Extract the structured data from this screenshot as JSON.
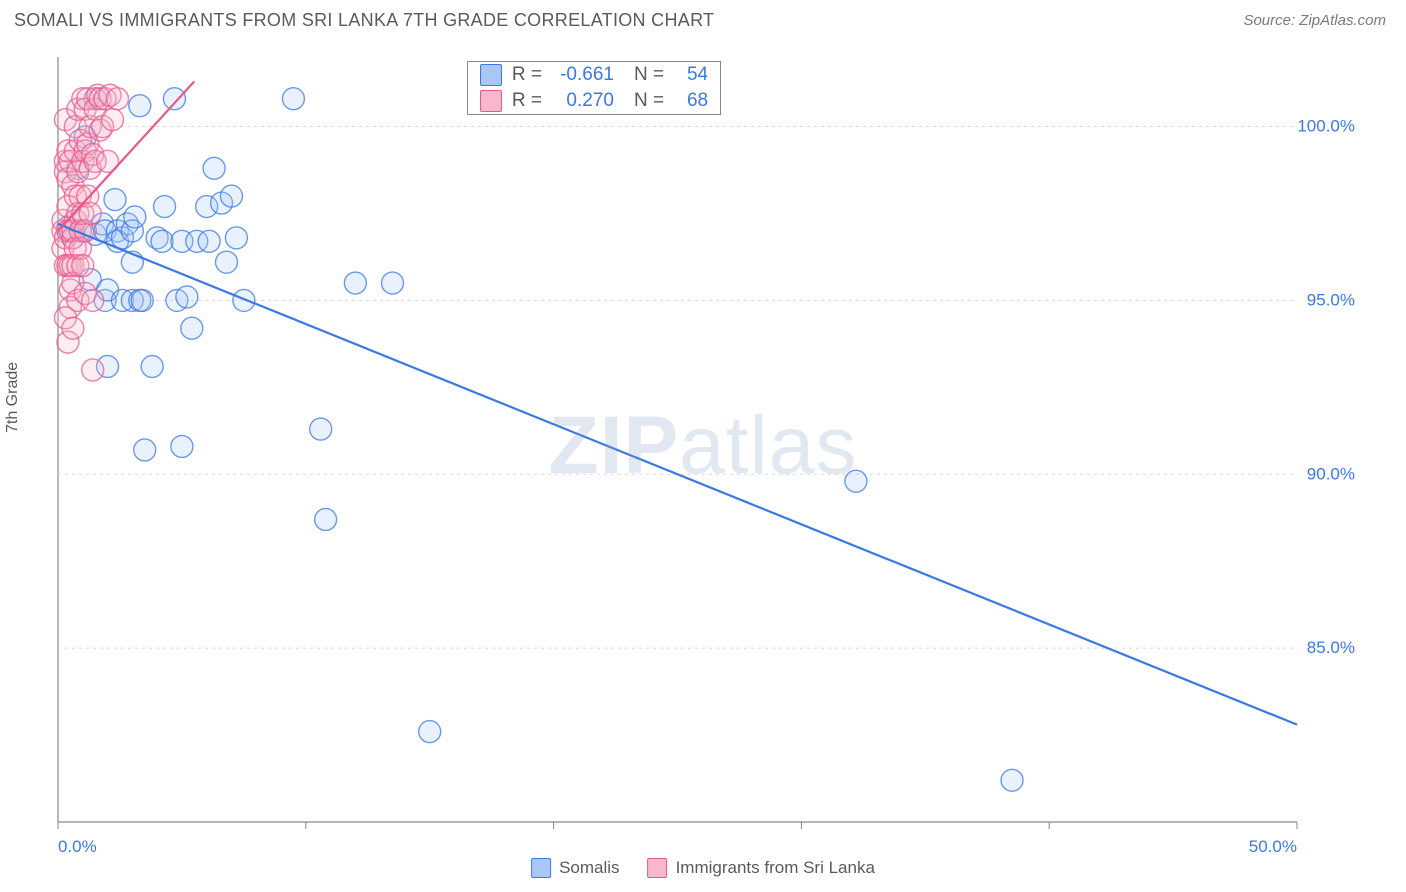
{
  "title": "SOMALI VS IMMIGRANTS FROM SRI LANKA 7TH GRADE CORRELATION CHART",
  "source": "Source: ZipAtlas.com",
  "watermark_a": "ZIP",
  "watermark_b": "atlas",
  "ylabel": "7th Grade",
  "chart": {
    "type": "scatter",
    "background_color": "#ffffff",
    "grid_color": "#d8d8d8",
    "border_color": "#888888",
    "xlim": [
      0,
      50
    ],
    "ylim": [
      80,
      102
    ],
    "x_ticks": [
      0,
      10,
      20,
      30,
      40,
      50
    ],
    "x_tick_labels": {
      "0": "0.0%",
      "50": "50.0%"
    },
    "y_ticks": [
      85,
      90,
      95,
      100
    ],
    "y_tick_labels": {
      "85": "85.0%",
      "90": "90.0%",
      "95": "95.0%",
      "100": "100.0%"
    },
    "marker_radius": 11,
    "marker_stroke_width": 1.4,
    "marker_fill_opacity": 0.25,
    "line_width": 2.2,
    "series": [
      {
        "name": "Somalis",
        "color": "#3b78e7",
        "fill": "#a9c6f5",
        "R": "-0.661",
        "N": "54",
        "trend": {
          "x1": 0.0,
          "y1": 97.2,
          "x2": 50.0,
          "y2": 82.8
        },
        "points": [
          [
            0.4,
            97.1
          ],
          [
            0.6,
            96.8
          ],
          [
            0.8,
            98.8
          ],
          [
            1.0,
            97.0
          ],
          [
            1.1,
            99.7
          ],
          [
            1.3,
            95.6
          ],
          [
            1.5,
            100.8
          ],
          [
            1.5,
            96.9
          ],
          [
            1.8,
            97.2
          ],
          [
            1.9,
            97.0
          ],
          [
            1.9,
            95.0
          ],
          [
            2.0,
            95.3
          ],
          [
            2.0,
            93.1
          ],
          [
            2.3,
            97.9
          ],
          [
            2.4,
            97.0
          ],
          [
            2.4,
            96.7
          ],
          [
            2.6,
            95.0
          ],
          [
            2.6,
            96.8
          ],
          [
            2.8,
            97.2
          ],
          [
            3.0,
            97.0
          ],
          [
            3.0,
            95.0
          ],
          [
            3.0,
            96.1
          ],
          [
            3.1,
            97.4
          ],
          [
            3.3,
            100.6
          ],
          [
            3.3,
            95.0
          ],
          [
            3.4,
            95.0
          ],
          [
            3.5,
            90.7
          ],
          [
            3.8,
            93.1
          ],
          [
            4.0,
            96.8
          ],
          [
            4.2,
            96.7
          ],
          [
            4.3,
            97.7
          ],
          [
            4.7,
            100.8
          ],
          [
            4.8,
            95.0
          ],
          [
            5.0,
            96.7
          ],
          [
            5.0,
            90.8
          ],
          [
            5.2,
            95.1
          ],
          [
            5.4,
            94.2
          ],
          [
            5.6,
            96.7
          ],
          [
            6.0,
            97.7
          ],
          [
            6.1,
            96.7
          ],
          [
            6.3,
            98.8
          ],
          [
            6.6,
            97.8
          ],
          [
            6.8,
            96.1
          ],
          [
            7.0,
            98.0
          ],
          [
            7.2,
            96.8
          ],
          [
            7.5,
            95.0
          ],
          [
            9.5,
            100.8
          ],
          [
            10.6,
            91.3
          ],
          [
            10.8,
            88.7
          ],
          [
            12.0,
            95.5
          ],
          [
            13.5,
            95.5
          ],
          [
            15.0,
            82.6
          ],
          [
            32.2,
            89.8
          ],
          [
            38.5,
            81.2
          ]
        ]
      },
      {
        "name": "Immigrants from Sri Lanka",
        "color": "#e75a8a",
        "fill": "#f7b8cd",
        "R": "0.270",
        "N": "68",
        "trend": {
          "x1": 0.0,
          "y1": 97.0,
          "x2": 5.5,
          "y2": 101.3
        },
        "points": [
          [
            0.2,
            97.0
          ],
          [
            0.2,
            96.5
          ],
          [
            0.2,
            97.3
          ],
          [
            0.3,
            96.0
          ],
          [
            0.3,
            96.8
          ],
          [
            0.3,
            99.0
          ],
          [
            0.3,
            98.7
          ],
          [
            0.3,
            100.2
          ],
          [
            0.4,
            97.0
          ],
          [
            0.4,
            96.0
          ],
          [
            0.4,
            98.5
          ],
          [
            0.4,
            97.7
          ],
          [
            0.4,
            99.3
          ],
          [
            0.5,
            96.0
          ],
          [
            0.5,
            97.0
          ],
          [
            0.5,
            95.3
          ],
          [
            0.5,
            94.8
          ],
          [
            0.5,
            99.0
          ],
          [
            0.6,
            96.0
          ],
          [
            0.6,
            96.8
          ],
          [
            0.6,
            98.3
          ],
          [
            0.6,
            97.0
          ],
          [
            0.6,
            95.5
          ],
          [
            0.7,
            96.5
          ],
          [
            0.7,
            97.3
          ],
          [
            0.7,
            98.0
          ],
          [
            0.7,
            99.3
          ],
          [
            0.7,
            100.0
          ],
          [
            0.8,
            96.0
          ],
          [
            0.8,
            97.5
          ],
          [
            0.8,
            98.7
          ],
          [
            0.8,
            100.5
          ],
          [
            0.8,
            95.0
          ],
          [
            0.9,
            97.0
          ],
          [
            0.9,
            98.0
          ],
          [
            0.9,
            99.6
          ],
          [
            0.9,
            96.5
          ],
          [
            1.0,
            97.5
          ],
          [
            1.0,
            99.0
          ],
          [
            1.0,
            100.8
          ],
          [
            1.0,
            96.0
          ],
          [
            1.1,
            97.0
          ],
          [
            1.1,
            99.3
          ],
          [
            1.1,
            100.5
          ],
          [
            1.1,
            95.2
          ],
          [
            1.2,
            100.8
          ],
          [
            1.2,
            98.0
          ],
          [
            1.2,
            99.5
          ],
          [
            1.3,
            100.0
          ],
          [
            1.3,
            97.5
          ],
          [
            1.3,
            98.8
          ],
          [
            1.4,
            95.0
          ],
          [
            1.4,
            99.2
          ],
          [
            1.5,
            100.5
          ],
          [
            1.5,
            99.0
          ],
          [
            1.6,
            100.9
          ],
          [
            1.7,
            99.9
          ],
          [
            1.7,
            100.8
          ],
          [
            1.8,
            100.0
          ],
          [
            1.9,
            100.8
          ],
          [
            2.0,
            99.0
          ],
          [
            2.1,
            100.9
          ],
          [
            2.2,
            100.2
          ],
          [
            2.4,
            100.8
          ],
          [
            1.4,
            93.0
          ],
          [
            0.4,
            93.8
          ],
          [
            0.3,
            94.5
          ],
          [
            0.6,
            94.2
          ]
        ]
      }
    ]
  },
  "legend_stats_labels": {
    "R": "R  =",
    "N": "N  ="
  },
  "bottom_legend": [
    {
      "label": "Somalis",
      "swatch_fill": "#a9c6f5",
      "swatch_stroke": "#3b78e7"
    },
    {
      "label": "Immigrants from Sri Lanka",
      "swatch_fill": "#f7b8cd",
      "swatch_stroke": "#e75a8a"
    }
  ]
}
